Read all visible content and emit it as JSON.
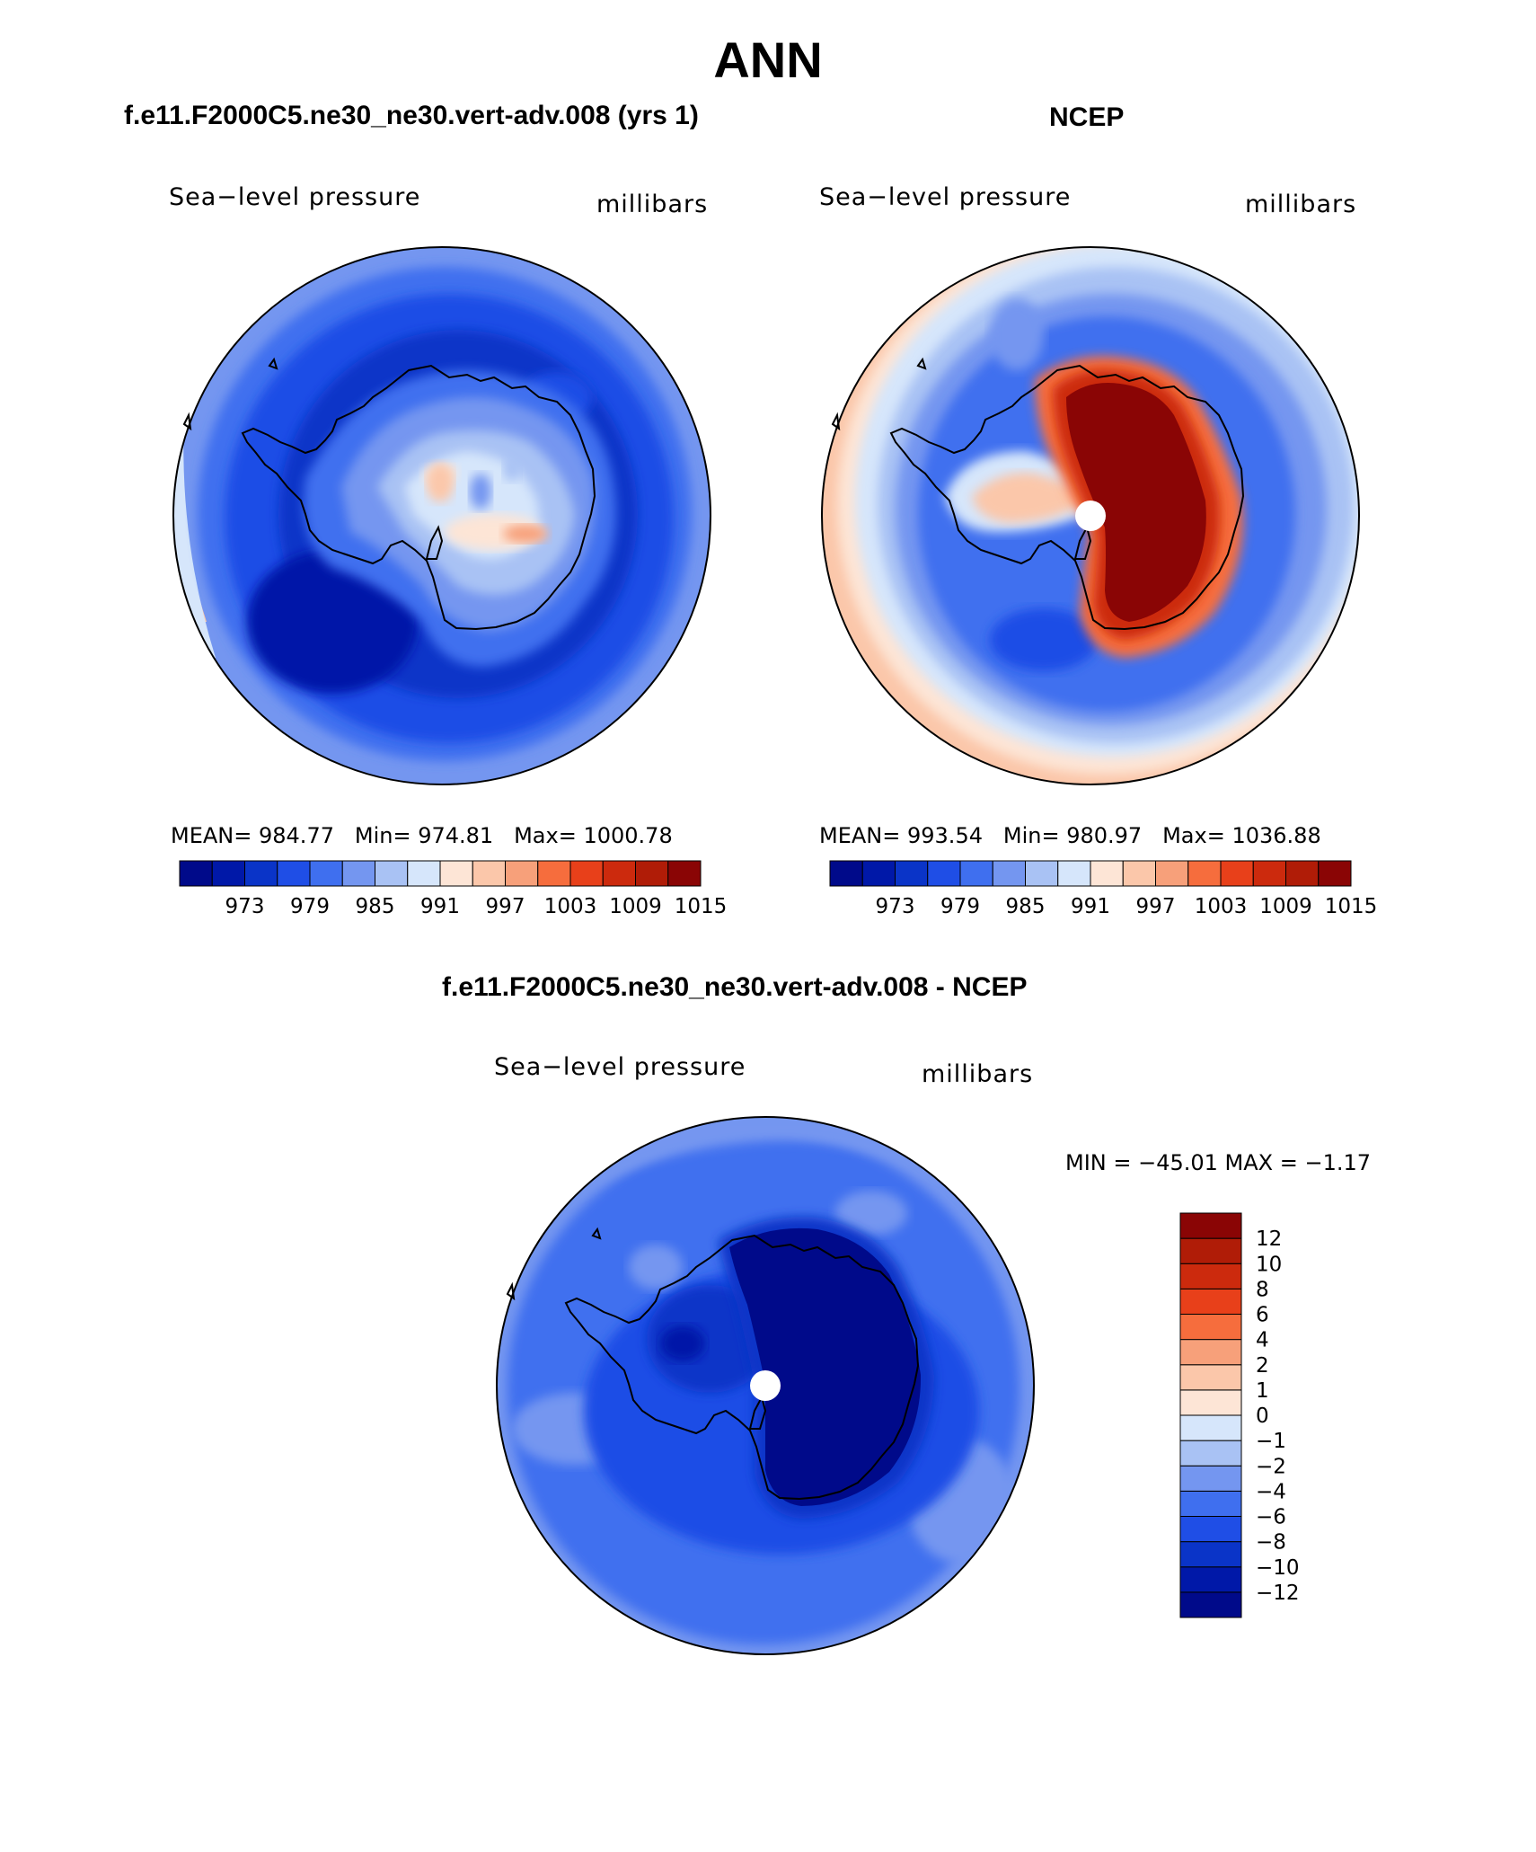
{
  "figure": {
    "title": "ANN"
  },
  "panels": [
    {
      "id": "model",
      "heading": "f.e11.F2000C5.ne30_ne30.vert-adv.008 (yrs 1)",
      "variable": "Sea−level pressure",
      "units": "millibars",
      "stats": {
        "mean_label": "MEAN=",
        "mean": "984.77",
        "min_label": "Min=",
        "min": "974.81",
        "max_label": "Max=",
        "max": "1000.78"
      }
    },
    {
      "id": "obs",
      "heading": "NCEP",
      "variable": "Sea−level pressure",
      "units": "millibars",
      "stats": {
        "mean_label": "MEAN=",
        "mean": "993.54",
        "min_label": "Min=",
        "min": "980.97",
        "max_label": "Max=",
        "max": "1036.88"
      }
    },
    {
      "id": "diff",
      "heading": "f.e11.F2000C5.ne30_ne30.vert-adv.008 - NCEP",
      "variable": "Sea−level pressure",
      "units": "millibars",
      "stats": {
        "text": "MIN = −45.01 MAX =  −1.17"
      }
    }
  ],
  "colorbars": {
    "absolute": {
      "colors": [
        "#000a8a",
        "#0018a8",
        "#0a34c8",
        "#1f4ee6",
        "#3f6fef",
        "#7496f0",
        "#a9c2f4",
        "#d6e6fb",
        "#fde5d6",
        "#fbc7aa",
        "#f7a07a",
        "#f66d3d",
        "#e8401a",
        "#cc2a0d",
        "#b01c07",
        "#8a0505"
      ],
      "tick_labels": [
        "973",
        "979",
        "985",
        "991",
        "997",
        "1003",
        "1009",
        "1015"
      ]
    },
    "difference": {
      "colors": [
        "#000a8a",
        "#0018a8",
        "#0a34c8",
        "#1f4ee6",
        "#3f6fef",
        "#7496f0",
        "#a9c2f4",
        "#d6e6fb",
        "#fde5d6",
        "#fbc7aa",
        "#f7a07a",
        "#f66d3d",
        "#e8401a",
        "#cc2a0d",
        "#b01c07",
        "#8a0505"
      ],
      "tick_labels": [
        "−12",
        "−10",
        "−8",
        "−6",
        "−4",
        "−2",
        "−1",
        "0",
        "1",
        "2",
        "4",
        "6",
        "8",
        "10",
        "12"
      ]
    }
  },
  "chart_data": {
    "type": "polar-contour-map",
    "region": "Southern Hemisphere polar stereographic (Antarctica)",
    "season": "ANN",
    "variable": "Sea-level pressure",
    "units": "millibars",
    "panels": [
      {
        "name": "f.e11.F2000C5.ne30_ne30.vert-adv.008 (yrs 1)",
        "mean": 984.77,
        "min": 974.81,
        "max": 1000.78
      },
      {
        "name": "NCEP",
        "mean": 993.54,
        "min": 980.97,
        "max": 1036.88
      },
      {
        "name": "f.e11.F2000C5.ne30_ne30.vert-adv.008 - NCEP",
        "min": -45.01,
        "max": -1.17
      }
    ],
    "contour_levels_absolute": [
      973,
      979,
      985,
      991,
      997,
      1003,
      1009,
      1015
    ],
    "contour_levels_difference": [
      -12,
      -10,
      -8,
      -6,
      -4,
      -2,
      -1,
      0,
      1,
      2,
      4,
      6,
      8,
      10,
      12
    ]
  }
}
